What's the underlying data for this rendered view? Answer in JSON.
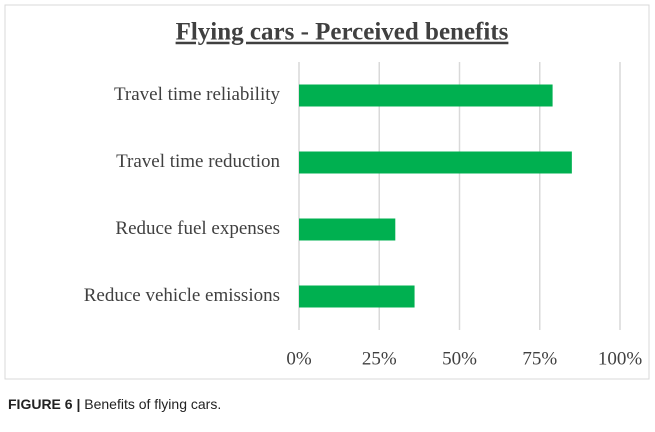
{
  "chart_data": {
    "type": "bar",
    "orientation": "horizontal",
    "title": "Flying cars - Perceived benefits",
    "categories": [
      "Travel time reliability",
      "Travel time reduction",
      "Reduce fuel expenses",
      "Reduce vehicle emissions"
    ],
    "values": [
      79,
      85,
      30,
      36
    ],
    "color": "#00b050",
    "xlim": [
      0,
      100
    ],
    "xticks": [
      {
        "value": 0,
        "label": "0%"
      },
      {
        "value": 25,
        "label": "25%"
      },
      {
        "value": 50,
        "label": "50%"
      },
      {
        "value": 75,
        "label": "75%"
      },
      {
        "value": 100,
        "label": "100%"
      }
    ],
    "grid": true
  },
  "caption": {
    "label": "FIGURE 6 |",
    "text": "Benefits of flying cars."
  }
}
